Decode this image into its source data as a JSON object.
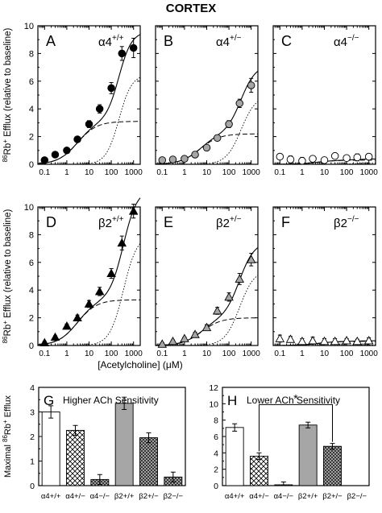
{
  "figure_title": "CORTEX",
  "colors": {
    "black": "#000000",
    "gray": "#a6a6a6",
    "white": "#ffffff",
    "dark_hatch": "#555555"
  },
  "chart_data": [
    {
      "id": "A",
      "type": "scatter",
      "panel_letter": "A",
      "genotype_base": "α4",
      "genotype_sup": "+/+",
      "marker": "circle",
      "marker_fill": "#000000",
      "ylabel_sup": "86",
      "ylabel_main": "Rb",
      "ylabel_rest": " Efflux (relative to baseline)",
      "xlabel": "",
      "xscale": "log",
      "xlim": [
        0.05,
        2000
      ],
      "ylim": [
        0,
        10
      ],
      "xticks": [
        "0.1",
        "1",
        "10",
        "100",
        "1000"
      ],
      "yticks": [
        "0",
        "2",
        "4",
        "6",
        "8",
        "10"
      ],
      "x": [
        0.1,
        0.3,
        1,
        3,
        10,
        30,
        100,
        300,
        1000
      ],
      "y": [
        0.3,
        0.7,
        1.0,
        1.8,
        2.9,
        4.0,
        5.5,
        8.0,
        8.4
      ],
      "err": [
        0.1,
        0.1,
        0.15,
        0.2,
        0.25,
        0.3,
        0.4,
        0.5,
        0.7
      ],
      "fit_high": {
        "max": 3.1,
        "ec50": 3,
        "n": 1
      },
      "fit_low": {
        "max": 6.5,
        "ec50": 220,
        "n": 1.5
      }
    },
    {
      "id": "B",
      "type": "scatter",
      "panel_letter": "B",
      "genotype_base": "α4",
      "genotype_sup": "+/−",
      "marker": "circle",
      "marker_fill": "#a6a6a6",
      "xlabel": "",
      "xscale": "log",
      "xlim": [
        0.05,
        2000
      ],
      "ylim": [
        0,
        10
      ],
      "xticks": [
        "0.1",
        "1",
        "10",
        "100",
        "1000"
      ],
      "yticks": [
        "0",
        "2",
        "4",
        "6",
        "8",
        "10"
      ],
      "x": [
        0.1,
        0.3,
        1,
        3,
        10,
        30,
        100,
        300,
        1000
      ],
      "y": [
        0.3,
        0.35,
        0.4,
        0.7,
        1.2,
        1.9,
        2.9,
        4.4,
        5.7
      ],
      "err": [
        0.1,
        0.1,
        0.1,
        0.15,
        0.15,
        0.2,
        0.25,
        0.3,
        0.5
      ],
      "fit_high": {
        "max": 2.2,
        "ec50": 5,
        "n": 1
      },
      "fit_low": {
        "max": 5.0,
        "ec50": 350,
        "n": 1.3
      }
    },
    {
      "id": "C",
      "type": "scatter",
      "panel_letter": "C",
      "genotype_base": "α4",
      "genotype_sup": "−/−",
      "marker": "circle",
      "marker_fill": "#ffffff",
      "xlabel": "",
      "xscale": "log",
      "xlim": [
        0.05,
        2000
      ],
      "ylim": [
        0,
        10
      ],
      "xticks": [
        "0.1",
        "1",
        "10",
        "100",
        "1000"
      ],
      "yticks": [
        "0",
        "2",
        "4",
        "6",
        "8",
        "10"
      ],
      "x": [
        0.1,
        0.3,
        1,
        3,
        10,
        30,
        100,
        300,
        1000
      ],
      "y": [
        0.55,
        0.35,
        0.25,
        0.4,
        0.3,
        0.6,
        0.45,
        0.5,
        0.55
      ],
      "err": [
        0.2,
        0.25,
        0.25,
        0.2,
        0.2,
        0.2,
        0.2,
        0.25,
        0.2
      ],
      "fit_high": {
        "max": 0.3,
        "ec50": 5,
        "n": 1
      },
      "fit_low": {
        "max": 0.1,
        "ec50": 300,
        "n": 1
      }
    },
    {
      "id": "D",
      "type": "scatter",
      "panel_letter": "D",
      "genotype_base": "β2",
      "genotype_sup": "+/+",
      "marker": "triangle",
      "marker_fill": "#000000",
      "ylabel_sup": "86",
      "ylabel_main": "Rb",
      "ylabel_rest": " Efflux (relative to baseline)",
      "xlabel": "[Acetylcholine]  (μM)",
      "xscale": "log",
      "xlim": [
        0.05,
        2000
      ],
      "ylim": [
        0,
        10
      ],
      "xticks": [
        "0.1",
        "1",
        "10",
        "100",
        "1000"
      ],
      "yticks": [
        "0",
        "2",
        "4",
        "6",
        "8",
        "10"
      ],
      "x": [
        0.1,
        0.3,
        1,
        3,
        10,
        30,
        100,
        300,
        1000
      ],
      "y": [
        0.2,
        0.6,
        1.4,
        2.0,
        3.0,
        3.9,
        5.2,
        7.4,
        9.7
      ],
      "err": [
        0.1,
        0.1,
        0.15,
        0.2,
        0.25,
        0.3,
        0.35,
        0.5,
        0.5
      ],
      "fit_high": {
        "max": 3.3,
        "ec50": 3,
        "n": 1
      },
      "fit_low": {
        "max": 8.0,
        "ec50": 350,
        "n": 1.4
      }
    },
    {
      "id": "E",
      "type": "scatter",
      "panel_letter": "E",
      "genotype_base": "β2",
      "genotype_sup": "+/−",
      "marker": "triangle",
      "marker_fill": "#a6a6a6",
      "xlabel": "",
      "xscale": "log",
      "xlim": [
        0.05,
        2000
      ],
      "ylim": [
        0,
        10
      ],
      "xticks": [
        "0.1",
        "1",
        "10",
        "100",
        "1000"
      ],
      "yticks": [
        "0",
        "2",
        "4",
        "6",
        "8",
        "10"
      ],
      "x": [
        0.1,
        0.3,
        1,
        3,
        10,
        30,
        100,
        300,
        1000
      ],
      "y": [
        0.1,
        0.3,
        0.5,
        0.8,
        1.3,
        2.5,
        3.5,
        4.8,
        6.2
      ],
      "err": [
        0.1,
        0.1,
        0.1,
        0.15,
        0.2,
        0.25,
        0.3,
        0.4,
        0.45
      ],
      "fit_high": {
        "max": 2.0,
        "ec50": 6,
        "n": 1
      },
      "fit_low": {
        "max": 5.5,
        "ec50": 300,
        "n": 1.3
      }
    },
    {
      "id": "F",
      "type": "scatter",
      "panel_letter": "F",
      "genotype_base": "β2",
      "genotype_sup": "−/−",
      "marker": "triangle",
      "marker_fill": "#ffffff",
      "xlabel": "",
      "xscale": "log",
      "xlim": [
        0.05,
        2000
      ],
      "ylim": [
        0,
        10
      ],
      "xticks": [
        "0.1",
        "1",
        "10",
        "100",
        "1000"
      ],
      "yticks": [
        "0",
        "2",
        "4",
        "6",
        "8",
        "10"
      ],
      "x": [
        0.1,
        0.3,
        1,
        3,
        10,
        30,
        100,
        300,
        1000
      ],
      "y": [
        0.5,
        0.45,
        0.3,
        0.35,
        0.3,
        0.3,
        0.35,
        0.3,
        0.35
      ],
      "err": [
        0.25,
        0.2,
        0.2,
        0.25,
        0.2,
        0.2,
        0.15,
        0.15,
        0.2
      ],
      "fit_high": {
        "max": 0.3,
        "ec50": 5,
        "n": 1
      },
      "fit_low": {
        "max": 0.05,
        "ec50": 300,
        "n": 1
      }
    },
    {
      "id": "G",
      "type": "bar",
      "panel_letter": "G",
      "title": "Higher ACh Sensitivity",
      "ylabel_pre": "Maximal ",
      "ylabel_sup": "86",
      "ylabel_main": "Rb",
      "ylabel_rest": " Efflux",
      "ylim": [
        0,
        4
      ],
      "yticks": [
        "0",
        "1",
        "2",
        "3",
        "4"
      ],
      "categories": [
        "α4+/+",
        "α4+/−",
        "α4−/−",
        "β2+/+",
        "β2+/−",
        "β2−/−"
      ],
      "values": [
        3.0,
        2.25,
        0.25,
        3.35,
        1.95,
        0.35
      ],
      "err": [
        0.25,
        0.2,
        0.2,
        0.25,
        0.2,
        0.2
      ],
      "fills": [
        "white",
        "hatch_light",
        "hatch_dark",
        "gray",
        "hatch_dark",
        "hatch_dark"
      ]
    },
    {
      "id": "H",
      "type": "bar",
      "panel_letter": "H",
      "title": "Lower ACh Sensitivity",
      "ylim": [
        0,
        12
      ],
      "yticks": [
        "0",
        "2",
        "4",
        "6",
        "8",
        "10",
        "12"
      ],
      "categories": [
        "α4+/+",
        "α4+/−",
        "α4−/−",
        "β2+/+",
        "β2+/−",
        "β2−/−"
      ],
      "values": [
        7.1,
        3.6,
        0.1,
        7.4,
        4.8,
        0
      ],
      "err": [
        0.45,
        0.4,
        0.35,
        0.35,
        0.35,
        0
      ],
      "fills": [
        "white",
        "hatch_light",
        "hatch_dark",
        "gray",
        "hatch_dark",
        "hatch_dark"
      ],
      "significance": {
        "from": 1,
        "to": 4,
        "label": "*"
      }
    }
  ]
}
